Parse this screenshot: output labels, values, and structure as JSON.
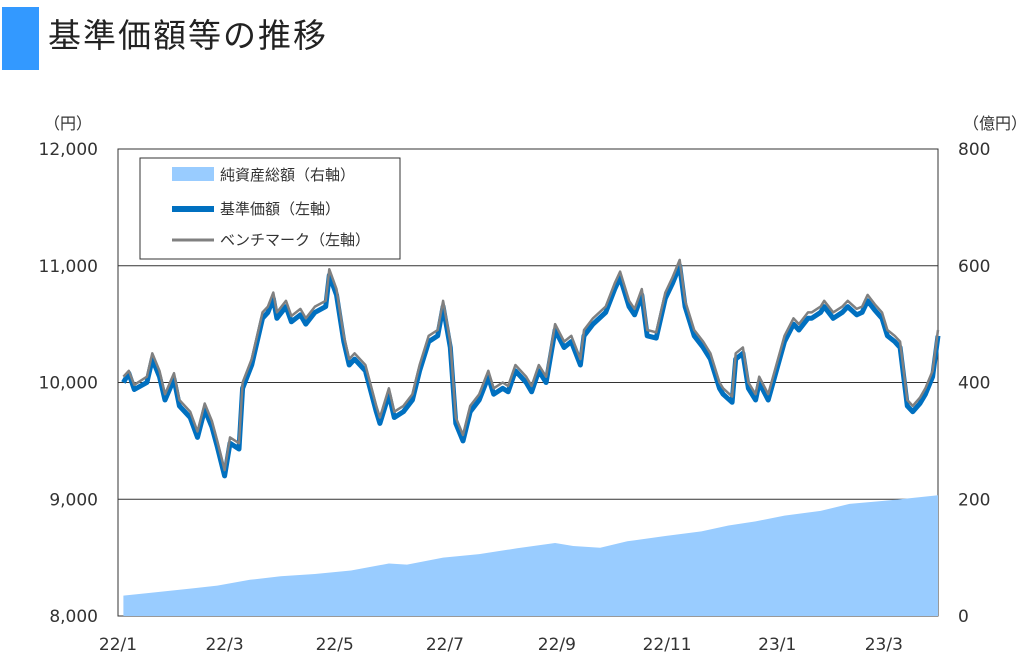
{
  "header": {
    "title": "基準価額等の推移",
    "accent_color": "#3399ff"
  },
  "chart_data": {
    "type": "line+area",
    "title": "基準価額等の推移",
    "y_left": {
      "unit": "（円）",
      "range": [
        8000,
        12000
      ],
      "ticks": [
        "8,000",
        "9,000",
        "10,000",
        "11,000",
        "12,000"
      ]
    },
    "y_right": {
      "unit": "（億円）",
      "range": [
        0,
        800
      ],
      "ticks": [
        "0",
        "200",
        "400",
        "600",
        "800"
      ]
    },
    "x": {
      "range": [
        "2022-01-01",
        "2023-03-31"
      ],
      "ticks": [
        "22/1",
        "22/3",
        "22/5",
        "22/7",
        "22/9",
        "22/11",
        "23/1",
        "23/3"
      ]
    },
    "grid": true,
    "legend_position": "top-left",
    "series": [
      {
        "name": "純資産総額（右軸）",
        "axis": "right",
        "kind": "area",
        "color": "#99ccff",
        "points": [
          [
            "2022-01-04",
            35
          ],
          [
            "2022-01-20",
            40
          ],
          [
            "2022-02-10",
            47
          ],
          [
            "2022-02-25",
            52
          ],
          [
            "2022-03-15",
            62
          ],
          [
            "2022-04-01",
            68
          ],
          [
            "2022-04-20",
            72
          ],
          [
            "2022-05-10",
            78
          ],
          [
            "2022-05-31",
            90
          ],
          [
            "2022-06-10",
            88
          ],
          [
            "2022-06-30",
            100
          ],
          [
            "2022-07-20",
            106
          ],
          [
            "2022-08-10",
            116
          ],
          [
            "2022-08-31",
            125
          ],
          [
            "2022-09-10",
            120
          ],
          [
            "2022-09-25",
            117
          ],
          [
            "2022-10-10",
            128
          ],
          [
            "2022-10-31",
            137
          ],
          [
            "2022-11-20",
            145
          ],
          [
            "2022-12-05",
            155
          ],
          [
            "2022-12-20",
            162
          ],
          [
            "2023-01-05",
            172
          ],
          [
            "2023-01-25",
            180
          ],
          [
            "2023-02-10",
            192
          ],
          [
            "2023-02-28",
            197
          ],
          [
            "2023-03-10",
            200
          ],
          [
            "2023-03-31",
            207
          ]
        ]
      },
      {
        "name": "基準価額（左軸）",
        "axis": "left",
        "kind": "line",
        "color": "#0070c0",
        "points": [
          [
            "2022-01-04",
            10000
          ],
          [
            "2022-01-07",
            10080
          ],
          [
            "2022-01-10",
            9940
          ],
          [
            "2022-01-17",
            10000
          ],
          [
            "2022-01-20",
            10200
          ],
          [
            "2022-01-24",
            10050
          ],
          [
            "2022-01-27",
            9850
          ],
          [
            "2022-02-01",
            10030
          ],
          [
            "2022-02-04",
            9800
          ],
          [
            "2022-02-10",
            9700
          ],
          [
            "2022-02-14",
            9530
          ],
          [
            "2022-02-18",
            9770
          ],
          [
            "2022-02-22",
            9620
          ],
          [
            "2022-02-25",
            9450
          ],
          [
            "2022-03-01",
            9200
          ],
          [
            "2022-03-04",
            9480
          ],
          [
            "2022-03-09",
            9430
          ],
          [
            "2022-03-11",
            9950
          ],
          [
            "2022-03-16",
            10150
          ],
          [
            "2022-03-22",
            10550
          ],
          [
            "2022-03-25",
            10600
          ],
          [
            "2022-03-28",
            10720
          ],
          [
            "2022-03-30",
            10550
          ],
          [
            "2022-04-04",
            10650
          ],
          [
            "2022-04-07",
            10520
          ],
          [
            "2022-04-12",
            10580
          ],
          [
            "2022-04-15",
            10500
          ],
          [
            "2022-04-20",
            10600
          ],
          [
            "2022-04-26",
            10650
          ],
          [
            "2022-04-28",
            10920
          ],
          [
            "2022-05-02",
            10750
          ],
          [
            "2022-05-06",
            10350
          ],
          [
            "2022-05-09",
            10150
          ],
          [
            "2022-05-12",
            10200
          ],
          [
            "2022-05-18",
            10100
          ],
          [
            "2022-05-24",
            9750
          ],
          [
            "2022-05-26",
            9650
          ],
          [
            "2022-05-31",
            9900
          ],
          [
            "2022-06-03",
            9700
          ],
          [
            "2022-06-08",
            9750
          ],
          [
            "2022-06-13",
            9850
          ],
          [
            "2022-06-17",
            10100
          ],
          [
            "2022-06-22",
            10350
          ],
          [
            "2022-06-27",
            10400
          ],
          [
            "2022-06-30",
            10650
          ],
          [
            "2022-07-04",
            10300
          ],
          [
            "2022-07-07",
            9650
          ],
          [
            "2022-07-11",
            9500
          ],
          [
            "2022-07-15",
            9750
          ],
          [
            "2022-07-20",
            9850
          ],
          [
            "2022-07-25",
            10050
          ],
          [
            "2022-07-28",
            9900
          ],
          [
            "2022-08-02",
            9950
          ],
          [
            "2022-08-05",
            9920
          ],
          [
            "2022-08-09",
            10100
          ],
          [
            "2022-08-15",
            10000
          ],
          [
            "2022-08-18",
            9920
          ],
          [
            "2022-08-22",
            10100
          ],
          [
            "2022-08-26",
            10000
          ],
          [
            "2022-08-31",
            10450
          ],
          [
            "2022-09-05",
            10300
          ],
          [
            "2022-09-09",
            10350
          ],
          [
            "2022-09-14",
            10150
          ],
          [
            "2022-09-16",
            10400
          ],
          [
            "2022-09-21",
            10500
          ],
          [
            "2022-09-28",
            10600
          ],
          [
            "2022-10-03",
            10800
          ],
          [
            "2022-10-06",
            10900
          ],
          [
            "2022-10-11",
            10650
          ],
          [
            "2022-10-14",
            10580
          ],
          [
            "2022-10-18",
            10750
          ],
          [
            "2022-10-21",
            10400
          ],
          [
            "2022-10-26",
            10380
          ],
          [
            "2022-10-31",
            10720
          ],
          [
            "2022-11-04",
            10850
          ],
          [
            "2022-11-08",
            11000
          ],
          [
            "2022-11-11",
            10650
          ],
          [
            "2022-11-16",
            10400
          ],
          [
            "2022-11-21",
            10300
          ],
          [
            "2022-11-25",
            10200
          ],
          [
            "2022-11-30",
            9950
          ],
          [
            "2022-12-02",
            9900
          ],
          [
            "2022-12-07",
            9830
          ],
          [
            "2022-12-09",
            10200
          ],
          [
            "2022-12-13",
            10250
          ],
          [
            "2022-12-16",
            9950
          ],
          [
            "2022-12-20",
            9850
          ],
          [
            "2022-12-22",
            10000
          ],
          [
            "2022-12-27",
            9850
          ],
          [
            "2023-01-05",
            10350
          ],
          [
            "2023-01-10",
            10500
          ],
          [
            "2023-01-13",
            10450
          ],
          [
            "2023-01-18",
            10550
          ],
          [
            "2023-01-20",
            10550
          ],
          [
            "2023-01-25",
            10600
          ],
          [
            "2023-01-27",
            10650
          ],
          [
            "2023-02-01",
            10550
          ],
          [
            "2023-02-06",
            10600
          ],
          [
            "2023-02-09",
            10650
          ],
          [
            "2023-02-14",
            10580
          ],
          [
            "2023-02-17",
            10600
          ],
          [
            "2023-02-20",
            10700
          ],
          [
            "2023-02-24",
            10620
          ],
          [
            "2023-02-28",
            10550
          ],
          [
            "2023-03-03",
            10400
          ],
          [
            "2023-03-07",
            10350
          ],
          [
            "2023-03-10",
            10300
          ],
          [
            "2023-03-14",
            9800
          ],
          [
            "2023-03-17",
            9750
          ],
          [
            "2023-03-21",
            9820
          ],
          [
            "2023-03-24",
            9900
          ],
          [
            "2023-03-28",
            10050
          ],
          [
            "2023-03-31",
            10400
          ]
        ]
      },
      {
        "name": "ベンチマーク（左軸）",
        "axis": "left",
        "kind": "line",
        "color": "#808080",
        "points": [
          [
            "2022-01-04",
            10050
          ],
          [
            "2022-01-07",
            10100
          ],
          [
            "2022-01-10",
            9980
          ],
          [
            "2022-01-17",
            10050
          ],
          [
            "2022-01-20",
            10250
          ],
          [
            "2022-01-24",
            10100
          ],
          [
            "2022-01-27",
            9900
          ],
          [
            "2022-02-01",
            10080
          ],
          [
            "2022-02-04",
            9850
          ],
          [
            "2022-02-10",
            9750
          ],
          [
            "2022-02-14",
            9580
          ],
          [
            "2022-02-18",
            9820
          ],
          [
            "2022-02-22",
            9670
          ],
          [
            "2022-02-25",
            9500
          ],
          [
            "2022-03-01",
            9250
          ],
          [
            "2022-03-04",
            9530
          ],
          [
            "2022-03-09",
            9480
          ],
          [
            "2022-03-11",
            10000
          ],
          [
            "2022-03-16",
            10200
          ],
          [
            "2022-03-22",
            10600
          ],
          [
            "2022-03-25",
            10650
          ],
          [
            "2022-03-28",
            10770
          ],
          [
            "2022-03-30",
            10600
          ],
          [
            "2022-04-04",
            10700
          ],
          [
            "2022-04-07",
            10570
          ],
          [
            "2022-04-12",
            10630
          ],
          [
            "2022-04-15",
            10550
          ],
          [
            "2022-04-20",
            10650
          ],
          [
            "2022-04-26",
            10700
          ],
          [
            "2022-04-28",
            10970
          ],
          [
            "2022-05-02",
            10800
          ],
          [
            "2022-05-06",
            10400
          ],
          [
            "2022-05-09",
            10200
          ],
          [
            "2022-05-12",
            10250
          ],
          [
            "2022-05-18",
            10150
          ],
          [
            "2022-05-24",
            9800
          ],
          [
            "2022-05-26",
            9700
          ],
          [
            "2022-05-31",
            9950
          ],
          [
            "2022-06-03",
            9750
          ],
          [
            "2022-06-08",
            9800
          ],
          [
            "2022-06-13",
            9900
          ],
          [
            "2022-06-17",
            10150
          ],
          [
            "2022-06-22",
            10400
          ],
          [
            "2022-06-27",
            10450
          ],
          [
            "2022-06-30",
            10700
          ],
          [
            "2022-07-04",
            10350
          ],
          [
            "2022-07-07",
            9700
          ],
          [
            "2022-07-11",
            9550
          ],
          [
            "2022-07-15",
            9800
          ],
          [
            "2022-07-20",
            9900
          ],
          [
            "2022-07-25",
            10100
          ],
          [
            "2022-07-28",
            9950
          ],
          [
            "2022-08-02",
            10000
          ],
          [
            "2022-08-05",
            9970
          ],
          [
            "2022-08-09",
            10150
          ],
          [
            "2022-08-15",
            10050
          ],
          [
            "2022-08-18",
            9970
          ],
          [
            "2022-08-22",
            10150
          ],
          [
            "2022-08-26",
            10050
          ],
          [
            "2022-08-31",
            10500
          ],
          [
            "2022-09-05",
            10350
          ],
          [
            "2022-09-09",
            10400
          ],
          [
            "2022-09-14",
            10200
          ],
          [
            "2022-09-16",
            10450
          ],
          [
            "2022-09-21",
            10550
          ],
          [
            "2022-09-28",
            10650
          ],
          [
            "2022-10-03",
            10850
          ],
          [
            "2022-10-06",
            10950
          ],
          [
            "2022-10-11",
            10700
          ],
          [
            "2022-10-14",
            10630
          ],
          [
            "2022-10-18",
            10800
          ],
          [
            "2022-10-21",
            10450
          ],
          [
            "2022-10-26",
            10430
          ],
          [
            "2022-10-31",
            10770
          ],
          [
            "2022-11-04",
            10900
          ],
          [
            "2022-11-08",
            11050
          ],
          [
            "2022-11-11",
            10700
          ],
          [
            "2022-11-16",
            10450
          ],
          [
            "2022-11-21",
            10350
          ],
          [
            "2022-11-25",
            10250
          ],
          [
            "2022-11-30",
            10000
          ],
          [
            "2022-12-02",
            9950
          ],
          [
            "2022-12-07",
            9880
          ],
          [
            "2022-12-09",
            10250
          ],
          [
            "2022-12-13",
            10300
          ],
          [
            "2022-12-16",
            10000
          ],
          [
            "2022-12-20",
            9900
          ],
          [
            "2022-12-22",
            10050
          ],
          [
            "2022-12-27",
            9900
          ],
          [
            "2023-01-05",
            10400
          ],
          [
            "2023-01-10",
            10550
          ],
          [
            "2023-01-13",
            10500
          ],
          [
            "2023-01-18",
            10600
          ],
          [
            "2023-01-20",
            10600
          ],
          [
            "2023-01-25",
            10650
          ],
          [
            "2023-01-27",
            10700
          ],
          [
            "2023-02-01",
            10600
          ],
          [
            "2023-02-06",
            10650
          ],
          [
            "2023-02-09",
            10700
          ],
          [
            "2023-02-14",
            10630
          ],
          [
            "2023-02-17",
            10650
          ],
          [
            "2023-02-20",
            10750
          ],
          [
            "2023-02-24",
            10670
          ],
          [
            "2023-02-28",
            10600
          ],
          [
            "2023-03-03",
            10450
          ],
          [
            "2023-03-07",
            10400
          ],
          [
            "2023-03-10",
            10350
          ],
          [
            "2023-03-14",
            9850
          ],
          [
            "2023-03-17",
            9800
          ],
          [
            "2023-03-21",
            9870
          ],
          [
            "2023-03-24",
            9950
          ],
          [
            "2023-03-28",
            10100
          ],
          [
            "2023-03-31",
            10450
          ]
        ]
      }
    ]
  }
}
